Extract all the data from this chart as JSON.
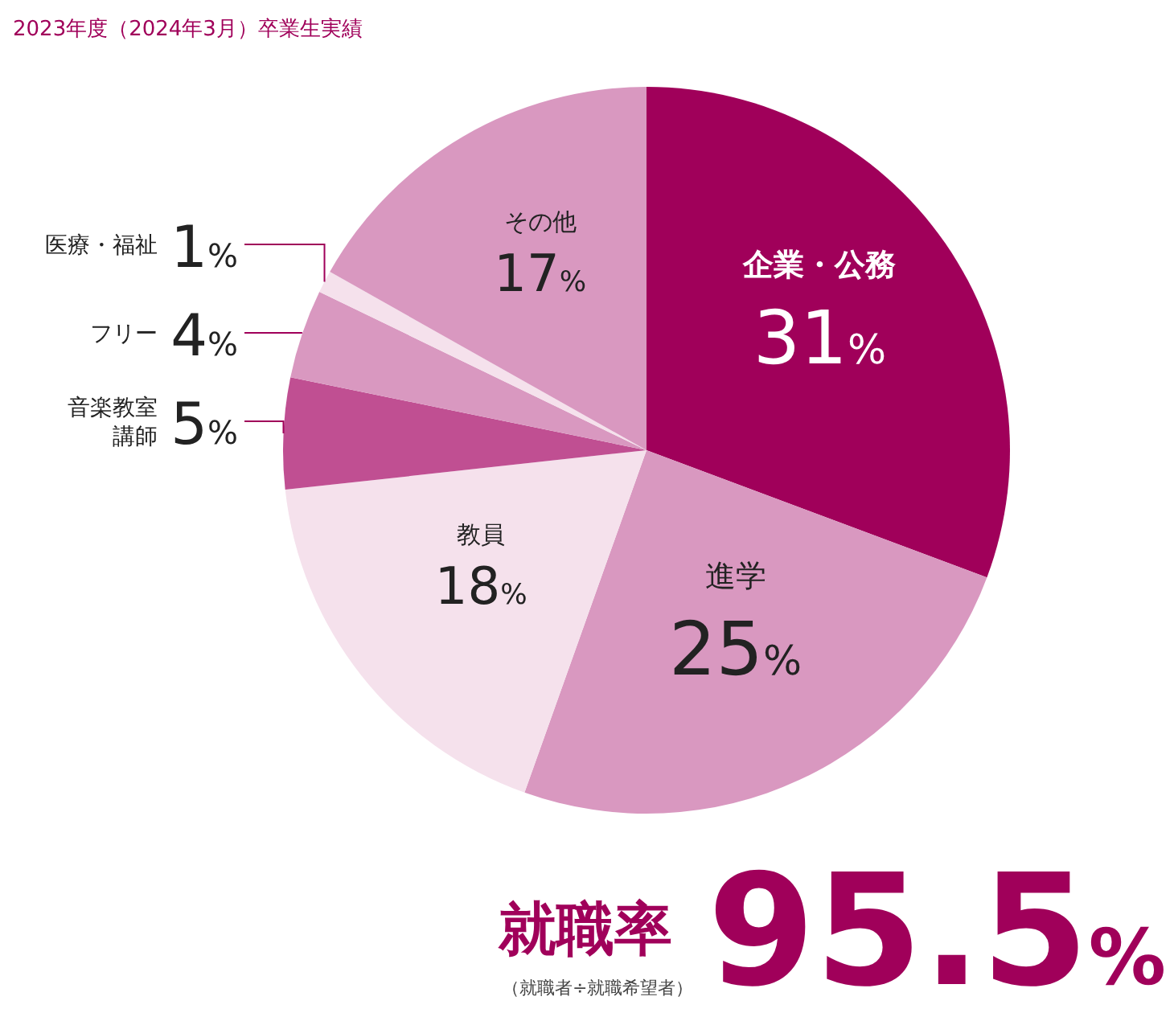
{
  "chart_data": {
    "type": "pie",
    "title": "2023年度（2024年3月）卒業生実績",
    "categories": [
      "企業・公務",
      "進学",
      "教員",
      "音楽教室講師",
      "フリー",
      "医療・福祉",
      "その他"
    ],
    "values": [
      31,
      25,
      18,
      5,
      4,
      1,
      17
    ],
    "colors": [
      "#a0005a",
      "#d998c0",
      "#f5e1ec",
      "#c04f92",
      "#d998c0",
      "#f5e1ec",
      "#d998c0"
    ],
    "value_labels": [
      "31%",
      "25%",
      "18%",
      "5%",
      "4%",
      "1%",
      "17%"
    ],
    "annotations": [
      "就職率",
      "（就職者÷就職希望者）",
      "95.5%"
    ]
  }
}
